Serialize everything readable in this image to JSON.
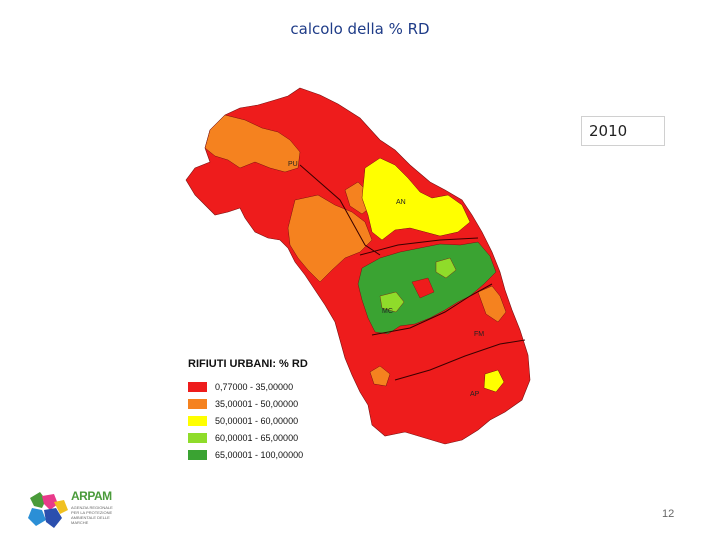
{
  "header": {
    "title": "calcolo della % RD"
  },
  "year_label": "2010",
  "map": {
    "province_labels": [
      "PU",
      "AN",
      "MC",
      "FM",
      "AP"
    ],
    "colors": {
      "red": "#ee1c1c",
      "orange": "#f5821f",
      "yellow": "#ffff00",
      "light_green": "#8fdc2a",
      "green": "#3aa332",
      "border": "#5a0a0a"
    }
  },
  "legend": {
    "title": "RIFIUTI URBANI: % RD",
    "items": [
      {
        "label": "0,77000 - 35,00000",
        "color": "#ee1c1c"
      },
      {
        "label": "35,00001 - 50,00000",
        "color": "#f5821f"
      },
      {
        "label": "50,00001 - 60,00000",
        "color": "#ffff00"
      },
      {
        "label": "60,00001 - 65,00000",
        "color": "#8fdc2a"
      },
      {
        "label": "65,00001 - 100,00000",
        "color": "#3aa332"
      }
    ]
  },
  "logo": {
    "name": "ARPAM",
    "subtitle": "AGENZIA REGIONALE PER LA PROTEZIONE AMBIENTALE DELLE MARCHE"
  },
  "page_number": "12"
}
